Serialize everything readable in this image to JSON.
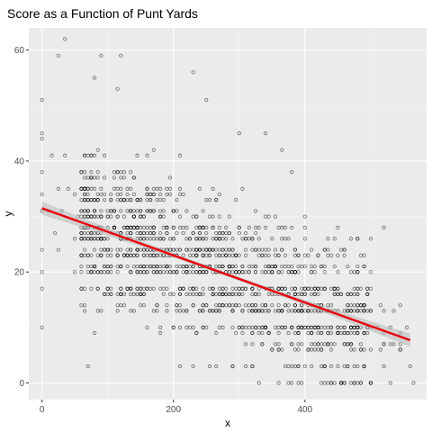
{
  "chart_data": {
    "type": "scatter",
    "title": "Score as a Function of Punt Yards",
    "xlabel": "x",
    "ylabel": "y",
    "xlim": [
      -20,
      585
    ],
    "ylim": [
      -3,
      64
    ],
    "x_ticks": [
      0,
      200,
      400
    ],
    "y_ticks": [
      0,
      20,
      40,
      60
    ],
    "grid": true,
    "legend": "none",
    "colors": {
      "panel_background": "#ebebeb",
      "grid_major": "#ffffff",
      "grid_minor": "#f5f5f5",
      "points": "#000000",
      "fit_line": "#e8000b",
      "confidence_band": "#bdbdbd"
    },
    "fit_line": {
      "method": "lm",
      "points": [
        {
          "x": 0,
          "y": 31.5
        },
        {
          "x": 560,
          "y": 7.7
        }
      ],
      "se_band_halfwidth_at_ends": 1.2,
      "se_band_halfwidth_at_center": 0.35
    },
    "point_cloud": {
      "note": "dense scatter of several thousand points; y values cluster on integer score levels",
      "y_levels": [
        0,
        3,
        6,
        7,
        9,
        10,
        13,
        14,
        16,
        17,
        20,
        21,
        23,
        24,
        26,
        27,
        28,
        30,
        31,
        33,
        34,
        35,
        37,
        38,
        41,
        42,
        45,
        48,
        51,
        55,
        59,
        62
      ],
      "samples": [
        {
          "x": 0,
          "y": 51
        },
        {
          "x": 0,
          "y": 45
        },
        {
          "x": 0,
          "y": 44
        },
        {
          "x": 0,
          "y": 38
        },
        {
          "x": 0,
          "y": 34
        },
        {
          "x": 0,
          "y": 31
        },
        {
          "x": 0,
          "y": 24
        },
        {
          "x": 0,
          "y": 20
        },
        {
          "x": 0,
          "y": 17
        },
        {
          "x": 0,
          "y": 10
        },
        {
          "x": 35,
          "y": 62
        },
        {
          "x": 25,
          "y": 59
        },
        {
          "x": 90,
          "y": 59
        },
        {
          "x": 120,
          "y": 59
        },
        {
          "x": 80,
          "y": 55
        },
        {
          "x": 115,
          "y": 53
        },
        {
          "x": 230,
          "y": 56
        },
        {
          "x": 250,
          "y": 51
        },
        {
          "x": 300,
          "y": 45
        },
        {
          "x": 340,
          "y": 45
        },
        {
          "x": 365,
          "y": 42
        },
        {
          "x": 380,
          "y": 38
        },
        {
          "x": 400,
          "y": 28
        },
        {
          "x": 430,
          "y": 24
        },
        {
          "x": 445,
          "y": 17
        },
        {
          "x": 480,
          "y": 20
        },
        {
          "x": 490,
          "y": 14
        },
        {
          "x": 520,
          "y": 28
        },
        {
          "x": 555,
          "y": 10
        },
        {
          "x": 560,
          "y": 3
        },
        {
          "x": 565,
          "y": 0
        },
        {
          "x": 545,
          "y": 6
        },
        {
          "x": 500,
          "y": 0
        },
        {
          "x": 470,
          "y": 0
        },
        {
          "x": 400,
          "y": 3
        },
        {
          "x": 330,
          "y": 0
        },
        {
          "x": 70,
          "y": 3
        },
        {
          "x": 80,
          "y": 9
        },
        {
          "x": 60,
          "y": 14
        },
        {
          "x": 50,
          "y": 20
        }
      ]
    }
  }
}
